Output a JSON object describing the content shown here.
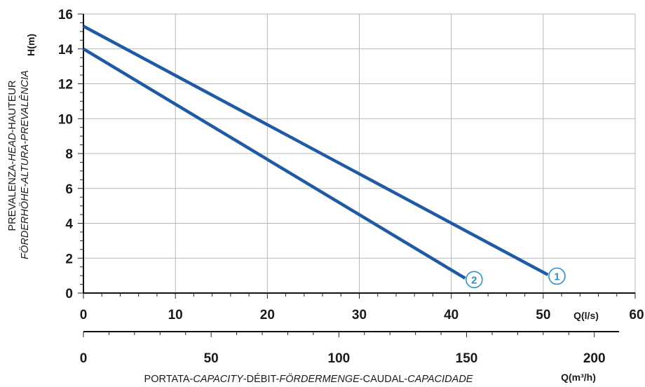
{
  "chart_data": {
    "type": "line",
    "ylabel_line1": [
      "PREVALENZA-",
      "HEAD",
      "-HAUTEUR"
    ],
    "ylabel_line2": "FÖRDERHÖHE-ALTURA-PREVALÊNCIA",
    "ylabel_unit": "H(m)",
    "xlabel_parts": [
      "PORTATA-",
      "CAPACITY",
      "-DÉBIT-",
      "FÖRDERMENGE",
      "-CAUDAL-",
      "CAPACIDADE"
    ],
    "x_unit_ls": "Q(l/s)",
    "x_unit_m3h": "Q(m³/h)",
    "xlim": [
      0,
      60
    ],
    "ylim": [
      0,
      16
    ],
    "x_ticks": [
      0,
      10,
      20,
      30,
      40,
      50,
      60
    ],
    "y_ticks": [
      0,
      2,
      4,
      6,
      8,
      10,
      12,
      14,
      16
    ],
    "x2_ticks": [
      0,
      50,
      100,
      150,
      200
    ],
    "x2_factor": 3.6,
    "grid": true,
    "series": [
      {
        "name": "1",
        "color": "#1f5aa6",
        "x": [
          0,
          50.5
        ],
        "y": [
          15.3,
          1.05
        ]
      },
      {
        "name": "2",
        "color": "#1f5aa6",
        "x": [
          0,
          41.5
        ],
        "y": [
          14.0,
          0.85
        ]
      }
    ],
    "marker_color": "#2b8fd0"
  }
}
